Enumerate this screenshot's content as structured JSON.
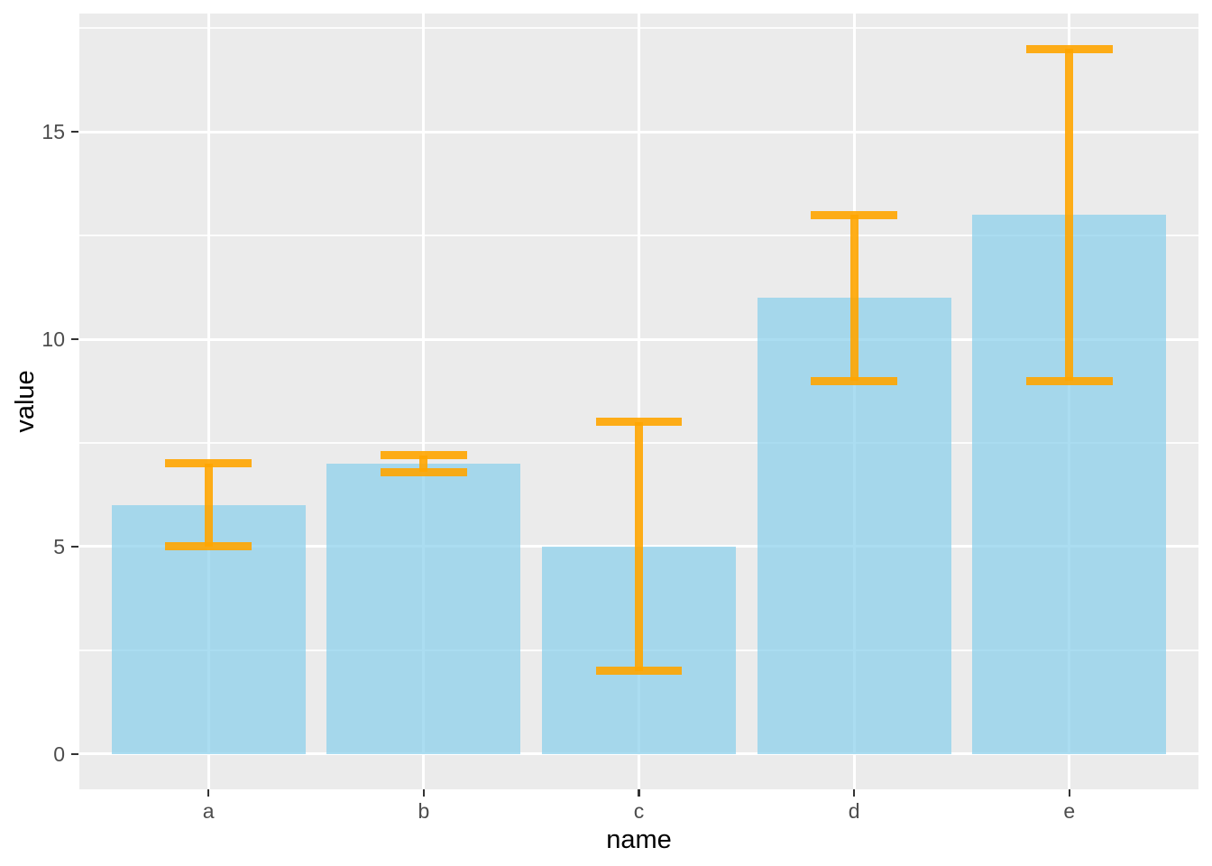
{
  "chart_data": {
    "type": "bar",
    "title": "",
    "xlabel": "name",
    "ylabel": "value",
    "categories": [
      "a",
      "b",
      "c",
      "d",
      "e"
    ],
    "values": [
      6,
      7,
      5,
      11,
      13
    ],
    "error_low": [
      5,
      6.8,
      2,
      9,
      9
    ],
    "error_high": [
      7,
      7.2,
      8,
      13,
      17
    ],
    "yticks": [
      0,
      5,
      10,
      15
    ],
    "ytick_labels": [
      "0",
      "5",
      "10",
      "15"
    ],
    "yticks_minor": [
      2.5,
      7.5,
      12.5,
      17.5
    ],
    "ylim": [
      -0.85,
      17.85
    ],
    "grid": "horizontal-and-vertical-major, horizontal-minor, white on gray panel",
    "legend": "none",
    "style": "ggplot2 theme_gray",
    "colors": {
      "panel_background": "#EBEBEB",
      "figure_background": "#FFFFFF",
      "gridline": "#FFFFFF",
      "bar_fill": "#87CEEB",
      "bar_alpha": 0.7,
      "error_bar": "#FFA500",
      "error_bar_alpha": 0.9,
      "tick_label": "#4D4D4D",
      "axis_title": "#000000",
      "tick_mark": "#333333"
    }
  }
}
